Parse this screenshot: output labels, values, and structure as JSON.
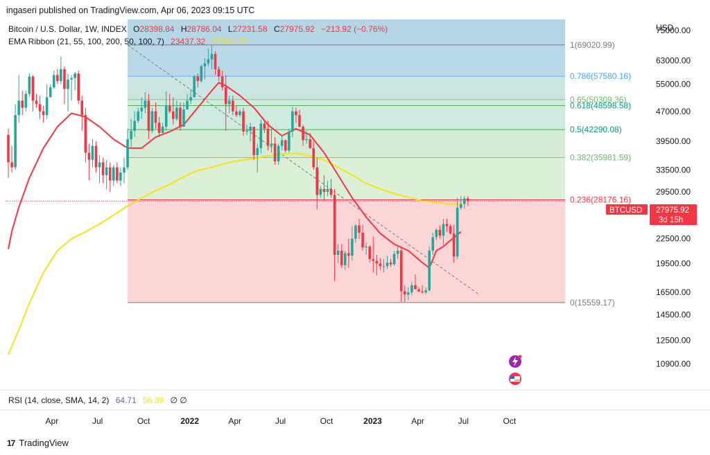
{
  "publisher": "ingaseri published on TradingView.com, Apr 06, 2023 09:15 UTC",
  "brand": "TradingView",
  "legend": {
    "symbol": "Bitcoin / U.S. Dollar, 1W, INDEX",
    "o_label": "O",
    "o": "28398.84",
    "h_label": "H",
    "h": "28786.04",
    "l_label": "L",
    "l": "27231.58",
    "c_label": "C",
    "c": "27975.92",
    "change": "−213.92 (−0.76%)",
    "ema_label": "EMA Ribbon (21, 55, 100, 200, 50, 100, 7)",
    "ema_v1": "23437.32",
    "ema_v2": "27568.22"
  },
  "rsi_label": "RSI (14, close, SMA, 14, 2)",
  "rsi_v1": "64.71",
  "rsi_v2": "56.39",
  "rsi_extra": "∅ ∅",
  "currency": "USD",
  "price_tag": {
    "symbol": "BTCUSD",
    "price": "27975.92",
    "countdown": "3d 15h"
  },
  "colors": {
    "up": "#26a69a",
    "down": "#f23645",
    "ema_fast": "#f23645",
    "ema_slow": "#f5e31a",
    "fib_top_blue": "#b3d7e6",
    "fib_green": "#c8e6c9",
    "fib_red": "#fcd4d4"
  },
  "chart_data": {
    "type": "candlestick",
    "title": "Bitcoin / U.S. Dollar, 1W, INDEX",
    "xlabel": "",
    "ylabel": "USD",
    "y_scale": "log",
    "ylim": [
      9500,
      80000
    ],
    "y_ticks": [
      "75000.00",
      "63000.00",
      "55000.00",
      "47000.00",
      "39500.00",
      "33500.00",
      "29500.00",
      "22500.00",
      "19500.00",
      "16500.00",
      "14500.00",
      "12500.00",
      "10900.00"
    ],
    "x_ticks": [
      "Apr",
      "Jul",
      "Oct",
      "2022",
      "Apr",
      "Jul",
      "Oct",
      "2023",
      "Apr",
      "Jul",
      "Oct"
    ],
    "x_tick_dates": [
      "2021-04-01",
      "2021-07-01",
      "2021-10-01",
      "2022-01-01",
      "2022-04-01",
      "2022-07-01",
      "2022-10-01",
      "2023-01-01",
      "2023-04-01",
      "2023-07-01",
      "2023-10-01"
    ],
    "fibonacci": [
      {
        "level": "1",
        "price": 69020.99,
        "label": "1(69020.99)"
      },
      {
        "level": "0.786",
        "price": 57580.16,
        "label": "0.786(57580.16)"
      },
      {
        "level": "0.65",
        "price": 50309.36,
        "label": "0.65(50309.36)"
      },
      {
        "level": "0.618",
        "price": 48598.58,
        "label": "0.618(48598.58)"
      },
      {
        "level": "0.5",
        "price": 42290.08,
        "label": "0.5(42290.08)"
      },
      {
        "level": "0.382",
        "price": 35981.59,
        "label": "0.382(35981.59)"
      },
      {
        "level": "0.236",
        "price": 28176.16,
        "label": "0.236(28176.16)"
      },
      {
        "level": "0",
        "price": 15559.17,
        "label": "0(15559.17)"
      }
    ],
    "fib_start": "2021-08-30",
    "trendline": {
      "from_date": "2021-08-30",
      "from_price": 69000,
      "to_date": "2023-08-01",
      "to_price": 16300
    },
    "candles_weekly": [
      [
        41000,
        42500,
        32000,
        35000
      ],
      [
        35000,
        38500,
        33000,
        34000
      ],
      [
        34000,
        49000,
        33500,
        46000
      ],
      [
        46000,
        58000,
        44000,
        50000
      ],
      [
        50000,
        53000,
        46000,
        48000
      ],
      [
        48000,
        53000,
        47000,
        52000
      ],
      [
        52000,
        58500,
        51000,
        57500
      ],
      [
        57500,
        58000,
        47000,
        50000
      ],
      [
        50000,
        52000,
        48000,
        49000
      ],
      [
        49000,
        51500,
        45000,
        47000
      ],
      [
        47000,
        48500,
        44000,
        46000
      ],
      [
        46000,
        55000,
        45000,
        51000
      ],
      [
        51000,
        55000,
        52000,
        54000
      ],
      [
        54000,
        59500,
        53500,
        58000
      ],
      [
        58000,
        60000,
        55000,
        56000
      ],
      [
        56000,
        64500,
        55000,
        60000
      ],
      [
        60000,
        61000,
        49000,
        53500
      ],
      [
        53500,
        58500,
        47000,
        56500
      ],
      [
        56500,
        58000,
        50000,
        57000
      ],
      [
        57000,
        59000,
        53000,
        58500
      ],
      [
        58500,
        59500,
        49000,
        50000
      ],
      [
        50000,
        51500,
        42000,
        46000
      ],
      [
        46000,
        48000,
        35000,
        37000
      ],
      [
        37000,
        39000,
        31500,
        35500
      ],
      [
        35500,
        40000,
        34000,
        38500
      ],
      [
        38500,
        39500,
        33000,
        34000
      ],
      [
        34000,
        36500,
        31000,
        35000
      ],
      [
        35000,
        36000,
        31000,
        32500
      ],
      [
        32500,
        35500,
        30000,
        34000
      ],
      [
        34000,
        35000,
        29500,
        31500
      ],
      [
        31500,
        34500,
        30500,
        34000
      ],
      [
        34000,
        35000,
        31000,
        31500
      ],
      [
        31500,
        34000,
        30500,
        33000
      ],
      [
        33000,
        36000,
        31000,
        34000
      ],
      [
        34000,
        42500,
        33500,
        40000
      ],
      [
        40000,
        45000,
        38000,
        42000
      ],
      [
        42000,
        47000,
        40500,
        44500
      ],
      [
        44500,
        48000,
        44000,
        47000
      ],
      [
        47000,
        51000,
        45000,
        48000
      ],
      [
        48000,
        52500,
        46500,
        50000
      ],
      [
        50000,
        52000,
        40000,
        42000
      ],
      [
        42000,
        48000,
        41500,
        47000
      ],
      [
        47000,
        49500,
        42500,
        44000
      ],
      [
        44000,
        45500,
        40500,
        41500
      ],
      [
        41500,
        44000,
        42000,
        43000
      ],
      [
        43000,
        52800,
        42000,
        48500
      ],
      [
        48500,
        52000,
        46500,
        47000
      ],
      [
        47000,
        51000,
        43500,
        45000
      ],
      [
        45000,
        50000,
        44500,
        48000
      ],
      [
        48000,
        49500,
        42000,
        43000
      ],
      [
        43000,
        49500,
        46500,
        47500
      ],
      [
        47500,
        52000,
        48000,
        50000
      ],
      [
        50000,
        53500,
        49000,
        51000
      ],
      [
        51000,
        58000,
        55000,
        57500
      ],
      [
        57500,
        58500,
        54000,
        56000
      ],
      [
        56000,
        61500,
        55500,
        61000
      ],
      [
        61000,
        64000,
        56500,
        62000
      ],
      [
        62000,
        67500,
        61000,
        63500
      ],
      [
        63500,
        69000,
        60000,
        65500
      ],
      [
        65500,
        66500,
        58000,
        60000
      ],
      [
        60000,
        61000,
        56000,
        57500
      ],
      [
        57500,
        59500,
        53000,
        54000
      ],
      [
        54000,
        58000,
        42000,
        49000
      ],
      [
        49000,
        51500,
        46500,
        50000
      ],
      [
        50000,
        51500,
        46000,
        47000
      ],
      [
        47000,
        48500,
        45500,
        46000
      ],
      [
        46000,
        47500,
        45500,
        47000
      ],
      [
        47000,
        48000,
        40800,
        41800
      ],
      [
        41800,
        43500,
        41000,
        42000
      ],
      [
        42000,
        44000,
        39500,
        43000
      ],
      [
        43000,
        43000,
        35500,
        36500
      ],
      [
        36500,
        39000,
        33000,
        38000
      ],
      [
        38000,
        44800,
        36800,
        43800
      ],
      [
        43800,
        44800,
        41500,
        42500
      ],
      [
        42500,
        44500,
        37500,
        38500
      ],
      [
        38500,
        42500,
        37000,
        39000
      ],
      [
        39000,
        40500,
        34500,
        35200
      ],
      [
        35200,
        39000,
        34500,
        38500
      ],
      [
        38500,
        41000,
        37500,
        39800
      ],
      [
        39800,
        39900,
        37000,
        37500
      ],
      [
        37500,
        42500,
        37000,
        41800
      ],
      [
        41800,
        48200,
        40500,
        47000
      ],
      [
        47000,
        48000,
        44000,
        46000
      ],
      [
        46000,
        47500,
        42800,
        43000
      ],
      [
        43000,
        43500,
        38500,
        39800
      ],
      [
        39800,
        42000,
        39000,
        40000
      ],
      [
        40000,
        41500,
        37800,
        38000
      ],
      [
        38000,
        39500,
        33500,
        34000
      ],
      [
        34000,
        36000,
        26700,
        29000
      ],
      [
        29000,
        30500,
        28500,
        30000
      ],
      [
        30000,
        32500,
        28000,
        29500
      ],
      [
        29500,
        31500,
        28800,
        30000
      ],
      [
        30000,
        31800,
        28500,
        29000
      ],
      [
        29000,
        30000,
        17600,
        20500
      ],
      [
        20500,
        21800,
        19500,
        21000
      ],
      [
        21000,
        21800,
        19000,
        19300
      ],
      [
        19300,
        21000,
        18800,
        20700
      ],
      [
        20700,
        22500,
        19000,
        20400
      ],
      [
        20400,
        24200,
        19800,
        22500
      ],
      [
        22500,
        24500,
        22000,
        24300
      ],
      [
        24300,
        25200,
        22500,
        23300
      ],
      [
        23300,
        24400,
        21000,
        21400
      ],
      [
        21400,
        22000,
        20500,
        21500
      ],
      [
        21500,
        21700,
        19600,
        20000
      ],
      [
        20000,
        22800,
        18500,
        19800
      ],
      [
        19800,
        20500,
        18200,
        19500
      ],
      [
        19500,
        20100,
        18800,
        19200
      ],
      [
        19200,
        20000,
        18500,
        19200
      ],
      [
        19200,
        20400,
        18900,
        19600
      ],
      [
        19600,
        20000,
        19100,
        19400
      ],
      [
        19400,
        21000,
        19200,
        20600
      ],
      [
        20600,
        21500,
        20000,
        21000
      ],
      [
        21000,
        21500,
        15600,
        16600
      ],
      [
        16600,
        17200,
        15600,
        16300
      ],
      [
        16300,
        17000,
        15800,
        16500
      ],
      [
        16500,
        17500,
        16200,
        17200
      ],
      [
        17200,
        18300,
        16800,
        16800
      ],
      [
        16800,
        17000,
        16500,
        16600
      ],
      [
        16600,
        17200,
        16400,
        16500
      ],
      [
        16500,
        17000,
        16300,
        16700
      ],
      [
        16700,
        21500,
        16600,
        21000
      ],
      [
        21000,
        23300,
        20500,
        22700
      ],
      [
        22700,
        23900,
        22300,
        23700
      ],
      [
        23700,
        24300,
        22500,
        22900
      ],
      [
        22900,
        25200,
        21700,
        24500
      ],
      [
        24500,
        25250,
        23400,
        24200
      ],
      [
        24200,
        24500,
        23000,
        23200
      ],
      [
        23200,
        24400,
        19600,
        20300
      ],
      [
        20300,
        28500,
        20000,
        26900
      ],
      [
        26900,
        28800,
        26600,
        27500
      ],
      [
        27500,
        28800,
        26800,
        28400
      ],
      [
        28398.84,
        28786.04,
        27231.58,
        27975.92
      ]
    ],
    "ema_fast_path": [
      [
        0,
        21200
      ],
      [
        1,
        23500
      ],
      [
        3,
        27000
      ],
      [
        6,
        32000
      ],
      [
        10,
        38000
      ],
      [
        14,
        43000
      ],
      [
        18,
        46500
      ],
      [
        22,
        45500
      ],
      [
        26,
        43000
      ],
      [
        30,
        40000
      ],
      [
        34,
        38000
      ],
      [
        38,
        38000
      ],
      [
        42,
        40500
      ],
      [
        46,
        41800
      ],
      [
        50,
        43500
      ],
      [
        54,
        48000
      ],
      [
        58,
        53000
      ],
      [
        60,
        55500
      ],
      [
        62,
        54500
      ],
      [
        66,
        51500
      ],
      [
        70,
        48000
      ],
      [
        74,
        43500
      ],
      [
        78,
        40800
      ],
      [
        82,
        42500
      ],
      [
        86,
        41000
      ],
      [
        90,
        37000
      ],
      [
        94,
        32500
      ],
      [
        98,
        28500
      ],
      [
        102,
        25500
      ],
      [
        106,
        23200
      ],
      [
        110,
        21800
      ],
      [
        114,
        21000
      ],
      [
        118,
        19600
      ],
      [
        120,
        19000
      ],
      [
        122,
        21000
      ],
      [
        124,
        21500
      ],
      [
        126,
        22300
      ],
      [
        128,
        23000
      ],
      [
        129,
        23437
      ]
    ],
    "ema_slow_path": [
      [
        0,
        11500
      ],
      [
        3,
        13300
      ],
      [
        6,
        15500
      ],
      [
        10,
        18500
      ],
      [
        14,
        21000
      ],
      [
        18,
        22500
      ],
      [
        22,
        23400
      ],
      [
        26,
        24500
      ],
      [
        30,
        25800
      ],
      [
        34,
        27200
      ],
      [
        38,
        28500
      ],
      [
        42,
        29700
      ],
      [
        46,
        30800
      ],
      [
        50,
        32200
      ],
      [
        54,
        33400
      ],
      [
        58,
        34000
      ],
      [
        62,
        34800
      ],
      [
        66,
        35400
      ],
      [
        70,
        35800
      ],
      [
        74,
        36300
      ],
      [
        78,
        36700
      ],
      [
        82,
        36900
      ],
      [
        86,
        36300
      ],
      [
        90,
        35500
      ],
      [
        94,
        34000
      ],
      [
        98,
        32500
      ],
      [
        102,
        31000
      ],
      [
        106,
        30000
      ],
      [
        110,
        29200
      ],
      [
        114,
        28600
      ],
      [
        118,
        28000
      ],
      [
        122,
        27700
      ],
      [
        126,
        27500
      ],
      [
        129,
        27568
      ]
    ]
  }
}
